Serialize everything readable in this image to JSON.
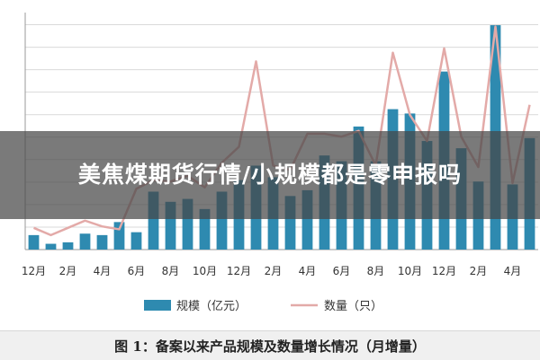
{
  "overlay": {
    "title": "美焦煤期货行情/小规模都是零申报吗"
  },
  "caption": "图 1：备案以来产品规模及数量增长情况（月增量）",
  "colors": {
    "bar": "#2e8ab0",
    "line": "#e3aaa8",
    "grid": "#d9d9d9",
    "axis": "#999999"
  },
  "chart_data": {
    "type": "bar",
    "x_tick_labels": [
      "12月",
      "2月",
      "4月",
      "6月",
      "8月",
      "10月",
      "12月",
      "2月",
      "4月",
      "6月",
      "8月",
      "10月",
      "12月",
      "2月",
      "4月"
    ],
    "categories": [
      "12月",
      "1月",
      "2月",
      "3月",
      "4月",
      "5月",
      "6月",
      "7月",
      "8月",
      "9月",
      "10月",
      "11月",
      "12月",
      "1月",
      "2月",
      "3月",
      "4月",
      "5月",
      "6月",
      "7月",
      "8月",
      "9月",
      "10月",
      "11月",
      "12月",
      "1月",
      "2月",
      "3月",
      "4月",
      "5月"
    ],
    "series": [
      {
        "name": "规模（亿元）",
        "type": "bar",
        "values": [
          1.0,
          0.4,
          0.5,
          1.1,
          1.0,
          1.9,
          1.2,
          4.0,
          3.3,
          3.5,
          2.8,
          4.0,
          4.8,
          5.8,
          5.0,
          3.7,
          4.1,
          6.5,
          6.1,
          8.5,
          6.1,
          9.7,
          9.4,
          7.5,
          12.3,
          7.0,
          4.7,
          15.5,
          4.5,
          7.7
        ]
      },
      {
        "name": "数量（只）",
        "type": "line",
        "values": [
          1.5,
          1.0,
          1.5,
          2.0,
          1.6,
          1.4,
          4.2,
          4.8,
          4.7,
          5.1,
          4.3,
          6.0,
          7.1,
          13.0,
          5.8,
          5.5,
          8.0,
          8.0,
          7.8,
          8.2,
          5.8,
          13.6,
          9.3,
          7.5,
          13.9,
          7.8,
          5.7,
          15.4,
          4.6,
          10.0
        ]
      }
    ],
    "legend_position": "bottom",
    "grid": true,
    "ylim": [
      0,
      16
    ]
  }
}
